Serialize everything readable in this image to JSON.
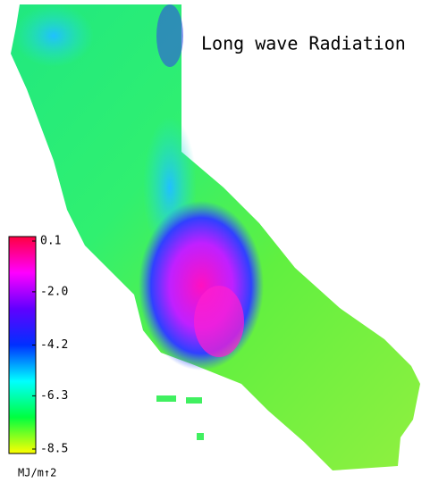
{
  "title": "Long wave Radiation",
  "colorbar": {
    "lim": [
      -8.5,
      0.1
    ],
    "ticks": [
      0.1,
      {
        "value": -2.0,
        "label": "-2.0"
      },
      -4.2,
      -6.3,
      -8.5
    ],
    "colors": [
      "#ff0040",
      "#ff00ff",
      "#6000ff",
      "#0030ff",
      "#00ffff",
      "#00ff40",
      "#ffff00"
    ],
    "unit": "MJ/m↑2"
  }
}
